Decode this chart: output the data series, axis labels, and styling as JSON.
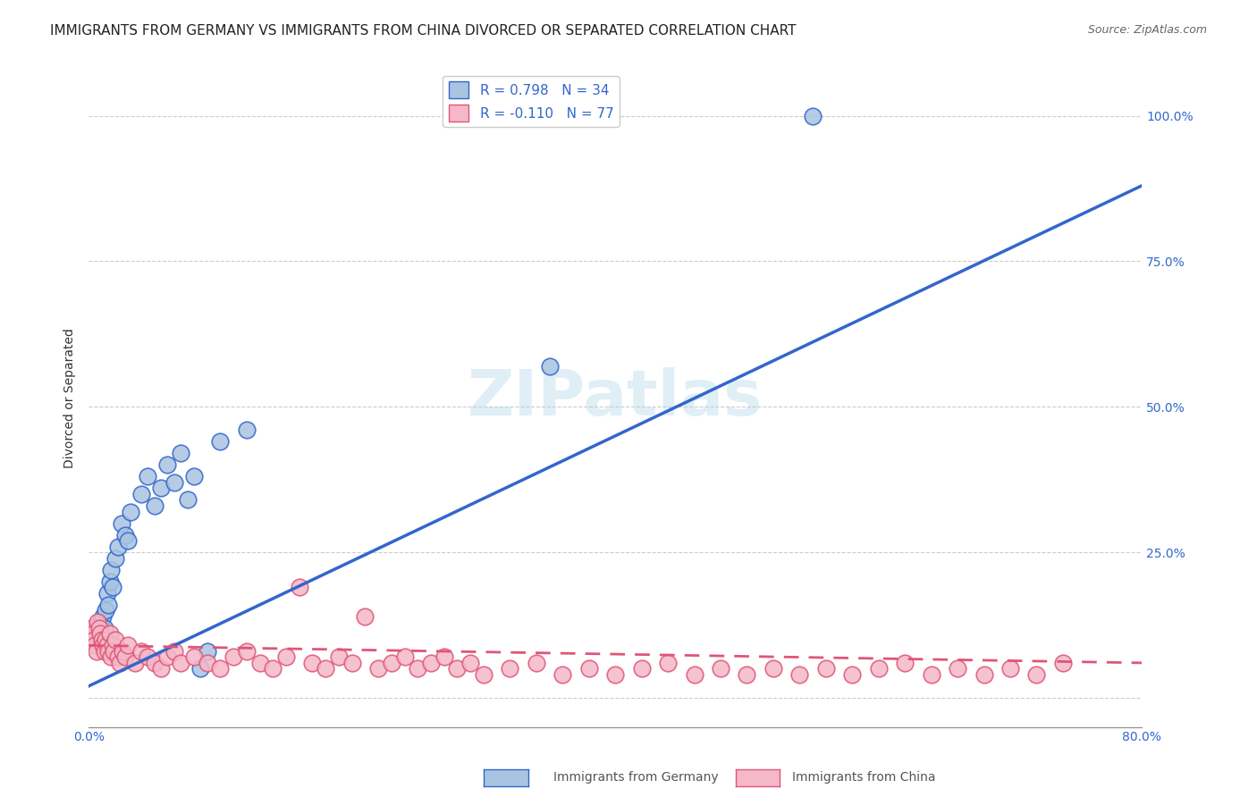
{
  "title": "IMMIGRANTS FROM GERMANY VS IMMIGRANTS FROM CHINA DIVORCED OR SEPARATED CORRELATION CHART",
  "source": "Source: ZipAtlas.com",
  "ylabel": "Divorced or Separated",
  "xlim": [
    0.0,
    0.8
  ],
  "ylim": [
    -0.05,
    1.08
  ],
  "x_ticks": [
    0.0,
    0.1,
    0.2,
    0.3,
    0.4,
    0.5,
    0.6,
    0.7,
    0.8
  ],
  "x_tick_labels": [
    "0.0%",
    "",
    "",
    "",
    "",
    "",
    "",
    "",
    "80.0%"
  ],
  "y_ticks_right": [
    0.0,
    0.25,
    0.5,
    0.75,
    1.0
  ],
  "y_tick_labels_right": [
    "",
    "25.0%",
    "50.0%",
    "75.0%",
    "100.0%"
  ],
  "germany_color": "#a8c4e0",
  "germany_line_color": "#3366cc",
  "china_color": "#f4b8c8",
  "china_line_color": "#e05577",
  "germany_R": 0.798,
  "germany_N": 34,
  "china_R": -0.11,
  "china_N": 77,
  "watermark": "ZIPatlas",
  "germany_x": [
    0.005,
    0.007,
    0.008,
    0.009,
    0.01,
    0.011,
    0.012,
    0.013,
    0.014,
    0.015,
    0.016,
    0.017,
    0.018,
    0.02,
    0.022,
    0.025,
    0.028,
    0.03,
    0.032,
    0.04,
    0.045,
    0.05,
    0.055,
    0.06,
    0.065,
    0.07,
    0.075,
    0.08,
    0.085,
    0.09,
    0.1,
    0.12,
    0.35,
    0.55
  ],
  "germany_y": [
    0.12,
    0.1,
    0.11,
    0.13,
    0.09,
    0.14,
    0.12,
    0.15,
    0.18,
    0.16,
    0.2,
    0.22,
    0.19,
    0.24,
    0.26,
    0.3,
    0.28,
    0.27,
    0.32,
    0.35,
    0.38,
    0.33,
    0.36,
    0.4,
    0.37,
    0.42,
    0.34,
    0.38,
    0.05,
    0.08,
    0.44,
    0.46,
    0.57,
    1.0
  ],
  "china_x": [
    0.002,
    0.003,
    0.004,
    0.005,
    0.006,
    0.007,
    0.008,
    0.009,
    0.01,
    0.011,
    0.012,
    0.013,
    0.014,
    0.015,
    0.016,
    0.017,
    0.018,
    0.019,
    0.02,
    0.022,
    0.024,
    0.026,
    0.028,
    0.03,
    0.035,
    0.04,
    0.045,
    0.05,
    0.055,
    0.06,
    0.065,
    0.07,
    0.08,
    0.09,
    0.1,
    0.11,
    0.12,
    0.13,
    0.14,
    0.15,
    0.16,
    0.17,
    0.18,
    0.19,
    0.2,
    0.21,
    0.22,
    0.23,
    0.24,
    0.25,
    0.26,
    0.27,
    0.28,
    0.29,
    0.3,
    0.32,
    0.34,
    0.36,
    0.38,
    0.4,
    0.42,
    0.44,
    0.46,
    0.48,
    0.5,
    0.52,
    0.54,
    0.56,
    0.58,
    0.6,
    0.62,
    0.64,
    0.66,
    0.68,
    0.7,
    0.72,
    0.74
  ],
  "china_y": [
    0.12,
    0.11,
    0.1,
    0.09,
    0.08,
    0.13,
    0.12,
    0.11,
    0.1,
    0.09,
    0.08,
    0.1,
    0.09,
    0.08,
    0.11,
    0.07,
    0.09,
    0.08,
    0.1,
    0.07,
    0.06,
    0.08,
    0.07,
    0.09,
    0.06,
    0.08,
    0.07,
    0.06,
    0.05,
    0.07,
    0.08,
    0.06,
    0.07,
    0.06,
    0.05,
    0.07,
    0.08,
    0.06,
    0.05,
    0.07,
    0.19,
    0.06,
    0.05,
    0.07,
    0.06,
    0.14,
    0.05,
    0.06,
    0.07,
    0.05,
    0.06,
    0.07,
    0.05,
    0.06,
    0.04,
    0.05,
    0.06,
    0.04,
    0.05,
    0.04,
    0.05,
    0.06,
    0.04,
    0.05,
    0.04,
    0.05,
    0.04,
    0.05,
    0.04,
    0.05,
    0.06,
    0.04,
    0.05,
    0.04,
    0.05,
    0.04,
    0.06
  ],
  "background_color": "#ffffff",
  "grid_color": "#cccccc",
  "title_fontsize": 11,
  "axis_label_fontsize": 10,
  "tick_fontsize": 10,
  "germany_line_x0": 0.0,
  "germany_line_y0": 0.02,
  "germany_line_x1": 0.8,
  "germany_line_y1": 0.88,
  "china_line_x0": 0.0,
  "china_line_y0": 0.09,
  "china_line_x1": 0.8,
  "china_line_y1": 0.06
}
